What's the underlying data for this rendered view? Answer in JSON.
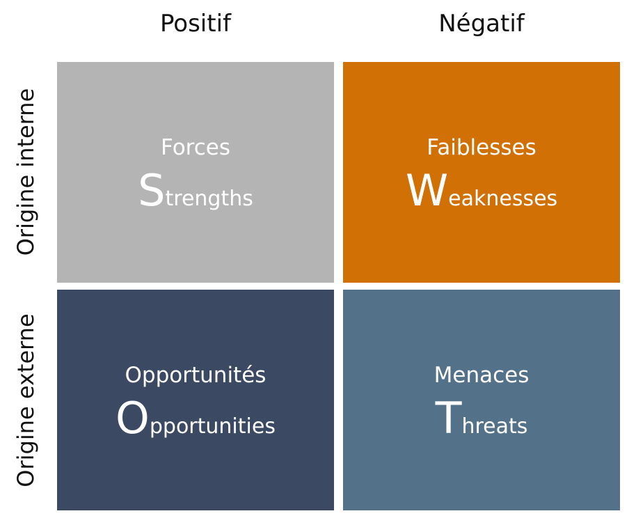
{
  "columns": {
    "positive": "Positif",
    "negative": "Négatif"
  },
  "rows": {
    "internal": "Origine interne",
    "external": "Origine externe"
  },
  "quadrants": {
    "strengths": {
      "french": "Forces",
      "initial": "S",
      "rest": "trengths",
      "color": "#b4b4b4"
    },
    "weaknesses": {
      "french": "Faiblesses",
      "initial": "W",
      "rest": "eaknesses",
      "color": "#d07005"
    },
    "opportunities": {
      "french": "Opportunités",
      "initial": "O",
      "rest": "pportunities",
      "color": "#3b4a62"
    },
    "threats": {
      "french": "Menaces",
      "initial": "T",
      "rest": "hreats",
      "color": "#537289"
    }
  }
}
